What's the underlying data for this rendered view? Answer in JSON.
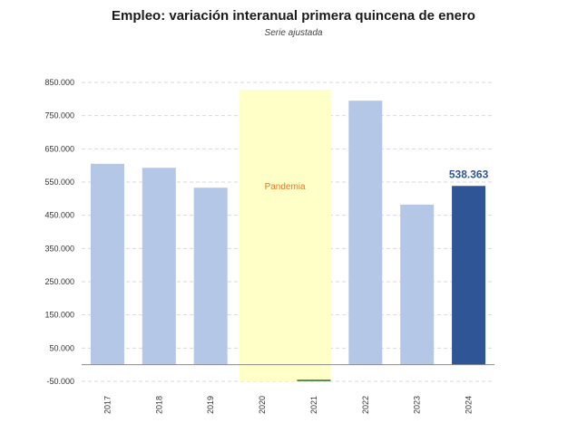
{
  "title": "Empleo: variación interanual primera quincena de enero",
  "subtitle": "Serie ajustada",
  "colors": {
    "bar": "#b4c7e7",
    "bar_highlight": "#2f5597",
    "band_fill": "#ffffc8",
    "band_text": "#e07b28",
    "gridline": "#d9d9d9",
    "axis": "#8c8c8c",
    "data_label": "#2f5597"
  },
  "chart_data": {
    "type": "bar",
    "categories": [
      "2017",
      "2018",
      "2019",
      "2020",
      "2021",
      "2022",
      "2023",
      "2024"
    ],
    "values": [
      605000,
      593000,
      533000,
      null,
      -45000,
      795000,
      482000,
      538363
    ],
    "highlight_index": 7,
    "data_labels": [
      {
        "category": "2024",
        "text": "538.363"
      }
    ],
    "annotations": [
      {
        "type": "band",
        "from": "2020",
        "to": "2021",
        "text": "Pandemia"
      }
    ],
    "yticks": [
      {
        "value": -50000,
        "label": "-50.000"
      },
      {
        "value": 50000,
        "label": "50.000"
      },
      {
        "value": 150000,
        "label": "150.000"
      },
      {
        "value": 250000,
        "label": "250.000"
      },
      {
        "value": 350000,
        "label": "350.000"
      },
      {
        "value": 450000,
        "label": "450.000"
      },
      {
        "value": 550000,
        "label": "550.000"
      },
      {
        "value": 650000,
        "label": "650.000"
      },
      {
        "value": 750000,
        "label": "750.000"
      },
      {
        "value": 850000,
        "label": "850.000"
      }
    ],
    "ylim": [
      -50000,
      850000
    ],
    "grid": true,
    "legend": "none",
    "xlabel": "",
    "ylabel": ""
  }
}
